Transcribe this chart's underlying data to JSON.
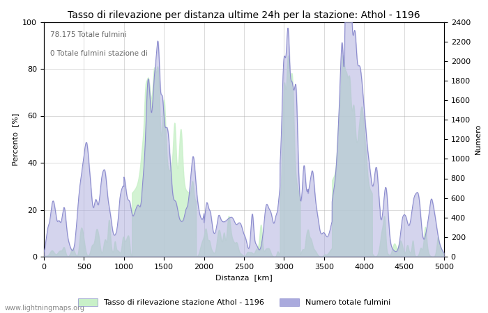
{
  "title": "Tasso di rilevazione per distanza ultime 24h per la stazione: Athol - 1196",
  "xlabel": "Distanza  [km]",
  "ylabel_left": "Percento  [%]",
  "ylabel_right": "Numero",
  "annotation_line1": "78.175 Totale fulmini",
  "annotation_line2": "0 Totale fulmini stazione di",
  "legend_label1": "Tasso di rilevazione stazione Athol - 1196",
  "legend_label2": "Numero totale fulmini",
  "watermark": "www.lightningmaps.org",
  "xlim": [
    0,
    5000
  ],
  "ylim_left": [
    0,
    100
  ],
  "ylim_right": [
    0,
    2400
  ],
  "xticks": [
    0,
    500,
    1000,
    1500,
    2000,
    2500,
    3000,
    3500,
    4000,
    4500,
    5000
  ],
  "yticks_left": [
    0,
    20,
    40,
    60,
    80,
    100
  ],
  "yticks_right": [
    0,
    200,
    400,
    600,
    800,
    1000,
    1200,
    1400,
    1600,
    1800,
    2000,
    2200,
    2400
  ],
  "line_color": "#8888cc",
  "fill_blue_color": "#aaaadd",
  "fill_blue_alpha": 0.5,
  "fill_green_color": "#c8f0c8",
  "fill_green_alpha": 0.8,
  "background_color": "#ffffff",
  "grid_color": "#aaaaaa",
  "title_fontsize": 10,
  "label_fontsize": 8,
  "tick_fontsize": 8,
  "legend_fontsize": 8
}
